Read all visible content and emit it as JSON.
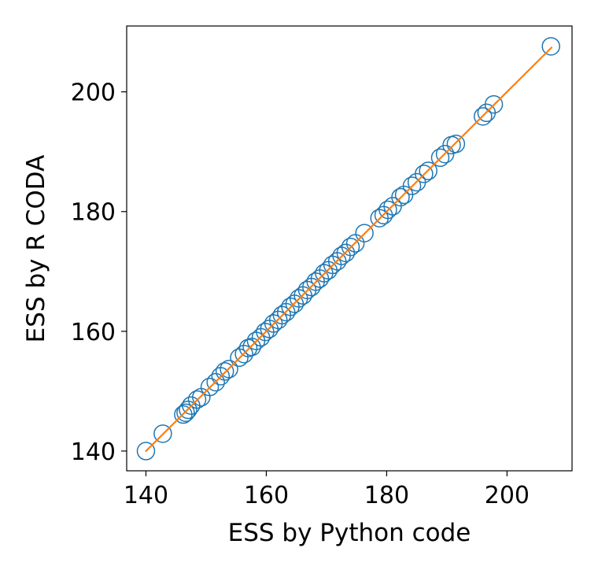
{
  "chart_data": {
    "type": "scatter",
    "title": "",
    "xlabel": "ESS by Python code",
    "ylabel": "ESS by R CODA",
    "xlim": [
      136.8,
      210.8
    ],
    "ylim": [
      136.7,
      211.0
    ],
    "xticks": [
      140,
      160,
      180,
      200
    ],
    "yticks": [
      140,
      160,
      180,
      200
    ],
    "grid": false,
    "legend": "none",
    "marker_color": "#1f77b4",
    "line_color": "#ff7f0e",
    "points": [
      [
        140.0,
        140.0
      ],
      [
        142.8,
        142.9
      ],
      [
        146.2,
        146.1
      ],
      [
        146.6,
        146.4
      ],
      [
        147.0,
        146.9
      ],
      [
        147.5,
        147.6
      ],
      [
        148.5,
        148.6
      ],
      [
        149.2,
        149.0
      ],
      [
        150.6,
        150.7
      ],
      [
        151.6,
        151.5
      ],
      [
        152.4,
        152.5
      ],
      [
        153.1,
        153.3
      ],
      [
        153.8,
        153.7
      ],
      [
        155.5,
        155.6
      ],
      [
        156.3,
        156.2
      ],
      [
        157.0,
        157.2
      ],
      [
        157.6,
        157.4
      ],
      [
        158.3,
        158.4
      ],
      [
        159.1,
        159.0
      ],
      [
        159.8,
        159.9
      ],
      [
        160.5,
        160.4
      ],
      [
        161.2,
        161.3
      ],
      [
        162.0,
        161.9
      ],
      [
        162.6,
        162.7
      ],
      [
        163.3,
        163.2
      ],
      [
        164.0,
        164.1
      ],
      [
        164.7,
        164.6
      ],
      [
        165.4,
        165.5
      ],
      [
        166.1,
        166.0
      ],
      [
        166.8,
        166.9
      ],
      [
        167.5,
        167.4
      ],
      [
        168.2,
        168.3
      ],
      [
        168.9,
        168.8
      ],
      [
        169.6,
        169.7
      ],
      [
        170.3,
        170.2
      ],
      [
        171.0,
        171.1
      ],
      [
        171.8,
        171.7
      ],
      [
        172.5,
        172.6
      ],
      [
        173.2,
        173.1
      ],
      [
        174.0,
        174.1
      ],
      [
        174.8,
        174.7
      ],
      [
        176.3,
        176.4
      ],
      [
        178.8,
        178.9
      ],
      [
        179.5,
        179.4
      ],
      [
        180.2,
        180.3
      ],
      [
        181.0,
        180.9
      ],
      [
        182.3,
        182.4
      ],
      [
        182.9,
        182.8
      ],
      [
        184.2,
        184.3
      ],
      [
        185.0,
        184.9
      ],
      [
        186.2,
        186.3
      ],
      [
        186.9,
        186.8
      ],
      [
        188.9,
        189.0
      ],
      [
        189.7,
        189.6
      ],
      [
        190.8,
        191.1
      ],
      [
        191.5,
        191.3
      ],
      [
        196.0,
        195.9
      ],
      [
        196.6,
        196.5
      ],
      [
        197.8,
        197.9
      ],
      [
        207.3,
        207.6
      ]
    ],
    "line": [
      [
        140.0,
        140.0
      ],
      [
        207.4,
        207.4
      ]
    ]
  }
}
